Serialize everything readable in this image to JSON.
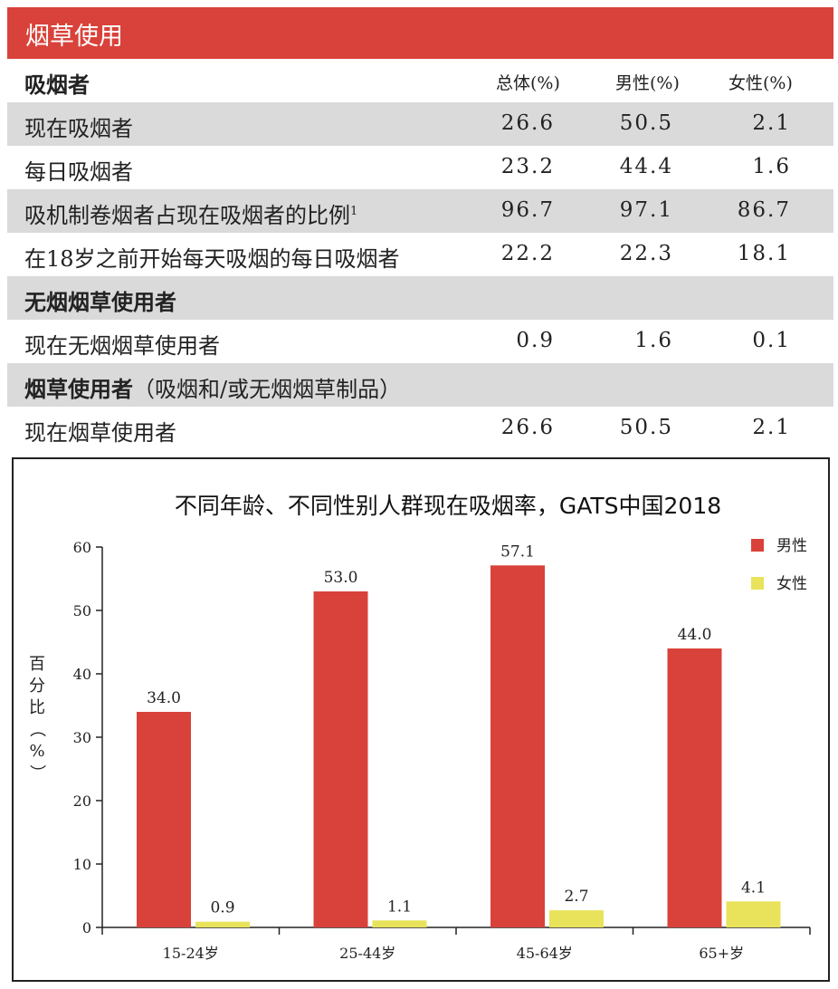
{
  "section_title": "烟草使用",
  "table": {
    "columns": [
      "总体(%)",
      "男性(%)",
      "女性(%)"
    ],
    "groups": [
      {
        "heading": "吸烟者",
        "rows": [
          {
            "label": "现在吸烟者",
            "sup": "",
            "values": [
              "26.6",
              "50.5",
              "2.1"
            ]
          },
          {
            "label": "每日吸烟者",
            "sup": "",
            "values": [
              "23.2",
              "44.4",
              "1.6"
            ]
          },
          {
            "label": "吸机制卷烟者占现在吸烟者的比例",
            "sup": "1",
            "values": [
              "96.7",
              "97.1",
              "86.7"
            ]
          },
          {
            "label": "在18岁之前开始每天吸烟的每日吸烟者",
            "sup": "",
            "values": [
              "22.2",
              "22.3",
              "18.1"
            ]
          }
        ]
      },
      {
        "heading": "无烟烟草使用者",
        "rows": [
          {
            "label": "现在无烟烟草使用者",
            "sup": "",
            "values": [
              "0.9",
              "1.6",
              "0.1"
            ]
          }
        ]
      },
      {
        "heading": "烟草使用者",
        "heading_note": "（吸烟和/或无烟烟草制品）",
        "rows": [
          {
            "label": "现在烟草使用者",
            "sup": "",
            "values": [
              "26.6",
              "50.5",
              "2.1"
            ]
          }
        ]
      }
    ]
  },
  "chart_data": {
    "type": "bar",
    "title": "不同年龄、不同性别人群现在吸烟率，GATS中国2018",
    "ylabel": "百分比（%）",
    "xlabel": "",
    "categories": [
      "15-24岁",
      "25-44岁",
      "45-64岁",
      "65+岁"
    ],
    "series": [
      {
        "name": "男性",
        "values": [
          34.0,
          53.0,
          57.1,
          44.0
        ],
        "color": "#d9423a"
      },
      {
        "name": "女性",
        "values": [
          0.9,
          1.1,
          2.7,
          4.1
        ],
        "color": "#e8e35a"
      }
    ],
    "ylim": [
      0,
      60
    ],
    "yticks": [
      0,
      10,
      20,
      30,
      40,
      50,
      60
    ],
    "grid": false,
    "legend_position": "top-right"
  }
}
